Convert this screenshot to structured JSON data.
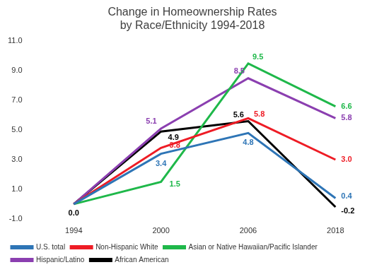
{
  "chart_data": {
    "type": "line",
    "title": "Change in Homeownership Rates by Race/Ethnicity 1994-2018",
    "categories": [
      "1994",
      "2000",
      "2006",
      "2018"
    ],
    "series": [
      {
        "name": "U.S. total",
        "color": "#2e75b6",
        "values": [
          0.0,
          3.4,
          4.8,
          0.4
        ],
        "value_labels": [
          null,
          "3.4",
          "4.8",
          "0.4"
        ]
      },
      {
        "name": "Non-Hispanic White",
        "color": "#ee1c25",
        "values": [
          0.0,
          3.8,
          5.8,
          3.0
        ],
        "value_labels": [
          null,
          "3.8",
          "5.8",
          "3.0"
        ]
      },
      {
        "name": "Asian or Native Hawaiian/Pacific Islander",
        "color": "#1fb84a",
        "values": [
          0.0,
          1.5,
          9.5,
          6.6
        ],
        "value_labels": [
          null,
          "1.5",
          "9.5",
          "6.6"
        ]
      },
      {
        "name": "Hispanic/Latino",
        "color": "#8b3fb0",
        "values": [
          0.0,
          5.1,
          8.5,
          5.8
        ],
        "value_labels": [
          null,
          "5.1",
          "8.5",
          "5.8"
        ]
      },
      {
        "name": "African American",
        "color": "#000000",
        "values": [
          0.0,
          4.9,
          5.6,
          -0.2
        ],
        "value_labels": [
          "0.0",
          "4.9",
          "5.6",
          "-0.2"
        ]
      }
    ],
    "ylim": [
      -1,
      11
    ],
    "yticks": [
      {
        "value": -1,
        "label": "-1.0"
      },
      {
        "value": 1,
        "label": "1.0"
      },
      {
        "value": 3,
        "label": "3.0"
      },
      {
        "value": 5,
        "label": "5.0"
      },
      {
        "value": 7,
        "label": "7.0"
      },
      {
        "value": 9,
        "label": "9.0"
      },
      {
        "value": 11,
        "label": "11.0"
      }
    ],
    "grid": false,
    "legend": "bottom",
    "data_labels": true,
    "marker": "none"
  }
}
